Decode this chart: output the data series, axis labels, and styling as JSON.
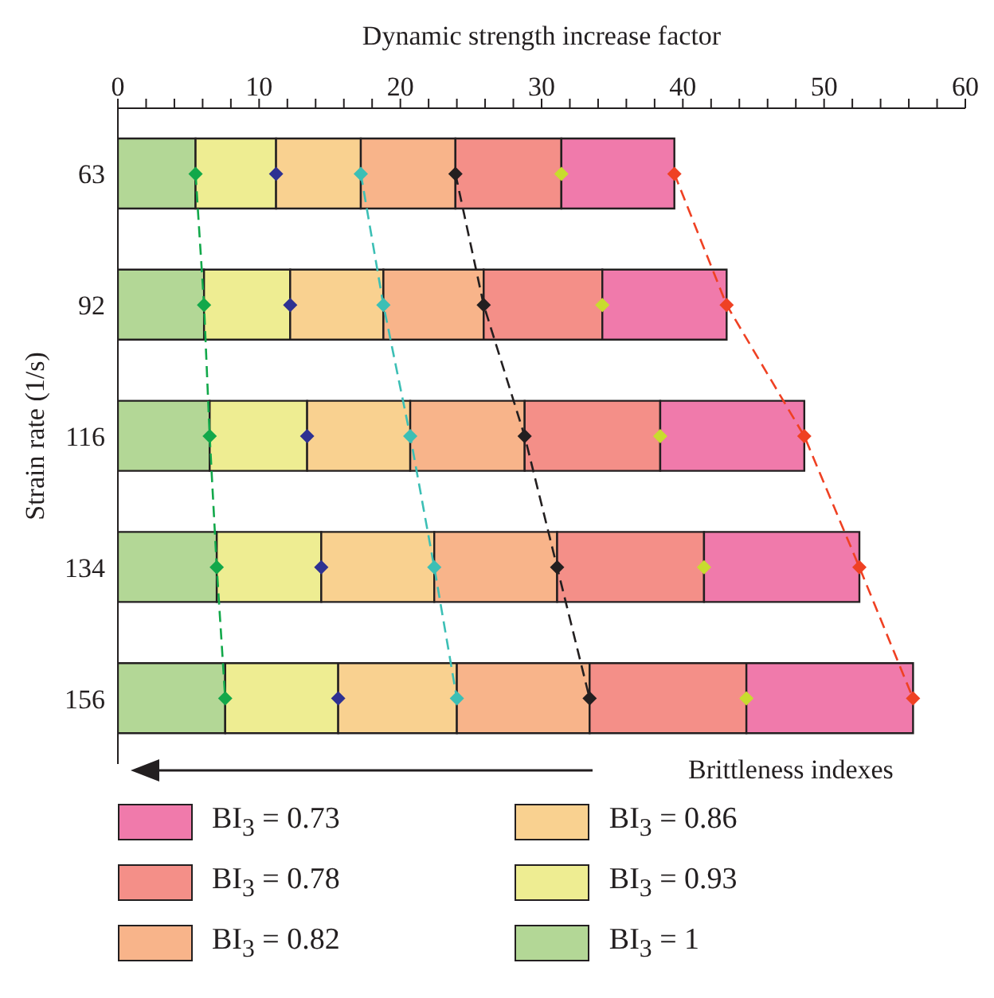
{
  "chart_data": {
    "type": "bar",
    "orientation": "horizontal",
    "stacked": true,
    "xlabel": "Dynamic strength increase factor",
    "ylabel": "Strain rate (1/s)",
    "categories": [
      "63",
      "92",
      "116",
      "134",
      "156"
    ],
    "xlim": [
      0,
      60
    ],
    "xticks": [
      0,
      {
        "value": 2,
        "label": null
      },
      {
        "value": 4,
        "label": null
      },
      {
        "value": 6,
        "label": null
      },
      {
        "value": 8,
        "label": null
      },
      10,
      {
        "value": 12,
        "label": null
      },
      {
        "value": 14,
        "label": null
      },
      {
        "value": 16,
        "label": null
      },
      {
        "value": 18,
        "label": null
      },
      20,
      {
        "value": 22,
        "label": null
      },
      {
        "value": 24,
        "label": null
      },
      {
        "value": 26,
        "label": null
      },
      {
        "value": 28,
        "label": null
      },
      30,
      {
        "value": 32,
        "label": null
      },
      {
        "value": 34,
        "label": null
      },
      {
        "value": 36,
        "label": null
      },
      {
        "value": 38,
        "label": null
      },
      40,
      {
        "value": 42,
        "label": null
      },
      {
        "value": 44,
        "label": null
      },
      {
        "value": 46,
        "label": null
      },
      {
        "value": 48,
        "label": null
      },
      50,
      {
        "value": 52,
        "label": null
      },
      {
        "value": 54,
        "label": null
      },
      {
        "value": 56,
        "label": null
      },
      {
        "value": 58,
        "label": null
      },
      60
    ],
    "series": [
      {
        "name": "BI$_{3}$ = 1",
        "color": "#b3d796",
        "values": [
          5.5,
          6.1,
          6.5,
          7.0,
          7.6
        ]
      },
      {
        "name": "BI$_{3}$ = 0.93",
        "color": "#eeed92",
        "values": [
          5.7,
          6.1,
          6.9,
          7.4,
          8.0
        ]
      },
      {
        "name": "BI$_{3}$ = 0.86",
        "color": "#f9d190",
        "values": [
          6.0,
          6.6,
          7.3,
          8.0,
          8.4
        ]
      },
      {
        "name": "BI$_{3}$ = 0.82",
        "color": "#f8b48a",
        "values": [
          6.7,
          7.1,
          8.1,
          8.7,
          9.4
        ]
      },
      {
        "name": "BI$_{3}$ = 0.78",
        "color": "#f48f88",
        "values": [
          7.5,
          8.4,
          9.6,
          10.4,
          11.1
        ]
      },
      {
        "name": "BI$_{3}$ = 0.73",
        "color": "#f07aab",
        "values": [
          8.0,
          8.8,
          10.2,
          11.0,
          11.8
        ]
      },
      {
        "type": "line",
        "color": "#12a84a",
        "marker": "diamond",
        "line_style": "dashed",
        "values": [
          5.5,
          6.1,
          6.5,
          7.0,
          7.6
        ]
      },
      {
        "type": "scatter",
        "color": "#2e3192",
        "marker": "diamond",
        "values": [
          11.2,
          12.2,
          13.4,
          14.4,
          15.6
        ]
      },
      {
        "type": "line",
        "color": "#3cbfb5",
        "marker": "diamond",
        "line_style": "dashed",
        "values": [
          17.2,
          18.8,
          20.7,
          22.4,
          24.0
        ]
      },
      {
        "type": "line",
        "color": "#231f20",
        "marker": "diamond",
        "line_style": "dashed",
        "values": [
          23.9,
          25.9,
          28.8,
          31.1,
          33.4
        ]
      },
      {
        "type": "scatter",
        "color": "#c8dc2e",
        "marker": "diamond",
        "values": [
          31.4,
          34.3,
          38.4,
          41.5,
          44.5
        ]
      },
      {
        "type": "line",
        "color": "#ef4123",
        "marker": "diamond",
        "line_style": "dashed",
        "values": [
          39.4,
          43.1,
          48.6,
          52.5,
          56.3
        ]
      }
    ],
    "annotations": [
      "Brittleness indexes"
    ],
    "legend": "bottom"
  }
}
